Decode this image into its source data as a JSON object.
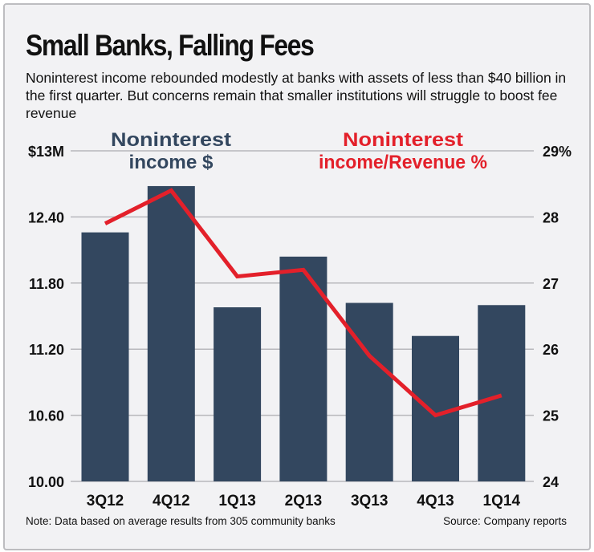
{
  "title": "Small Banks, Falling Fees",
  "subtitle": "Noninterest income rebounded modestly at banks with assets of less than $40 billion in the first quarter. But concerns remain that smaller institutions will struggle to boost fee revenue",
  "note": "Note: Data based on average results from 305 community banks",
  "source": "Source: Company reports",
  "chart_data": {
    "type": "bar+line",
    "categories": [
      "3Q12",
      "4Q12",
      "1Q13",
      "2Q13",
      "3Q13",
      "4Q13",
      "1Q14"
    ],
    "series": [
      {
        "name": "Noninterest income $",
        "type": "bar",
        "axis": "left",
        "color": "#33475f",
        "values": [
          12.26,
          12.68,
          11.58,
          12.04,
          11.62,
          11.32,
          11.6
        ]
      },
      {
        "name": "Noninterest income/Revenue %",
        "type": "line",
        "axis": "right",
        "color": "#e3202a",
        "values": [
          27.9,
          28.4,
          27.1,
          27.2,
          25.9,
          25.0,
          25.3
        ]
      }
    ],
    "left_axis": {
      "ylim": [
        10.0,
        13.0
      ],
      "ticks": [
        "10.00",
        "10.60",
        "11.20",
        "11.80",
        "12.40",
        "$13M"
      ],
      "tick_values": [
        10.0,
        10.6,
        11.2,
        11.8,
        12.4,
        13.0
      ]
    },
    "right_axis": {
      "ylim": [
        24,
        29
      ],
      "ticks": [
        "24",
        "25",
        "26",
        "27",
        "28",
        "29%"
      ],
      "tick_values": [
        24,
        25,
        26,
        27,
        28,
        29
      ]
    },
    "legend_labels": [
      [
        "Noninterest",
        "income $"
      ],
      [
        "Noninterest",
        "income/Revenue %"
      ]
    ],
    "grid": true
  }
}
